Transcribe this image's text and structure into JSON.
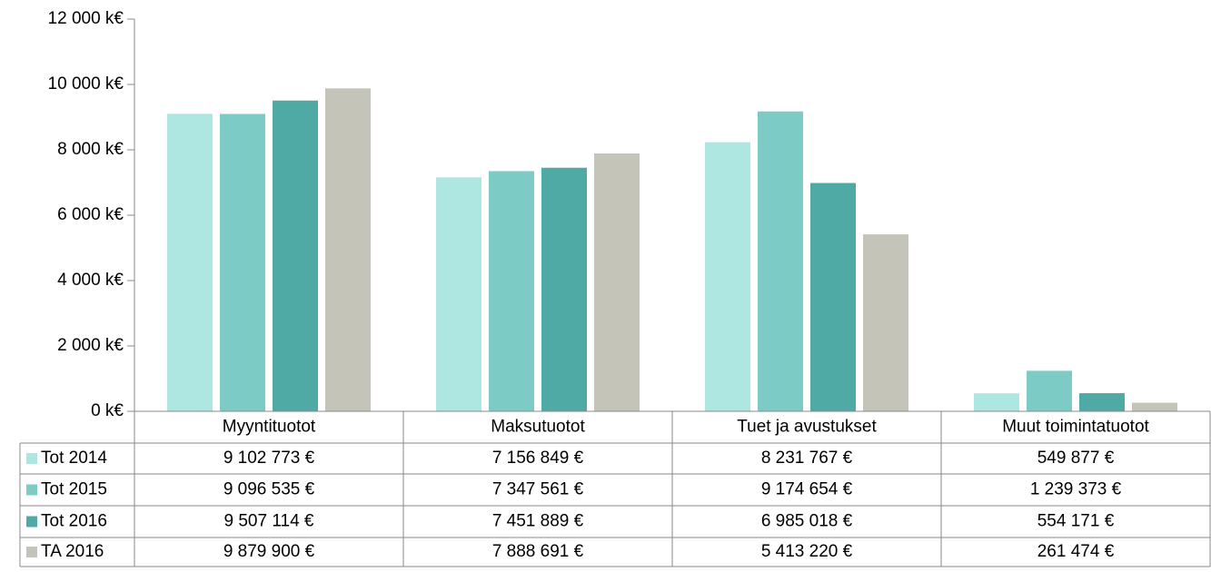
{
  "chart_data": {
    "type": "bar",
    "categories": [
      "Myyntituotot",
      "Maksutuotot",
      "Tuet ja avustukset",
      "Muut toimintatuotot"
    ],
    "series": [
      {
        "name": "Tot 2014",
        "color": "#aee6e2",
        "values": [
          9102.773,
          7156.849,
          8231.767,
          549.877
        ],
        "value_labels": [
          "9 102 773 €",
          "7 156 849 €",
          "8 231 767 €",
          "549 877 €"
        ]
      },
      {
        "name": "Tot 2015",
        "color": "#7ccbc5",
        "values": [
          9096.535,
          7347.561,
          9174.654,
          1239.373
        ],
        "value_labels": [
          "9 096 535 €",
          "7 347 561 €",
          "9 174 654 €",
          "1 239 373 €"
        ]
      },
      {
        "name": "Tot 2016",
        "color": "#4fa9a4",
        "values": [
          9507.114,
          7451.889,
          6985.018,
          554.171
        ],
        "value_labels": [
          "9 507 114 €",
          "7 451 889 €",
          "6 985 018 €",
          "554 171 €"
        ]
      },
      {
        "name": "TA 2016",
        "color": "#c4c4b8",
        "values": [
          9879.9,
          7888.691,
          5413.22,
          261.474
        ],
        "value_labels": [
          "9 879 900 €",
          "7 888 691 €",
          "5 413 220 €",
          "261 474 €"
        ]
      }
    ],
    "ylim": [
      0,
      12000
    ],
    "yticks": [
      {
        "value": 0,
        "label": "0 k€"
      },
      {
        "value": 2000,
        "label": "2 000 k€"
      },
      {
        "value": 4000,
        "label": "4 000 k€"
      },
      {
        "value": 6000,
        "label": "6 000 k€"
      },
      {
        "value": 8000,
        "label": "8 000 k€"
      },
      {
        "value": 10000,
        "label": "10 000 k€"
      },
      {
        "value": 12000,
        "label": "12 000 k€"
      }
    ]
  }
}
